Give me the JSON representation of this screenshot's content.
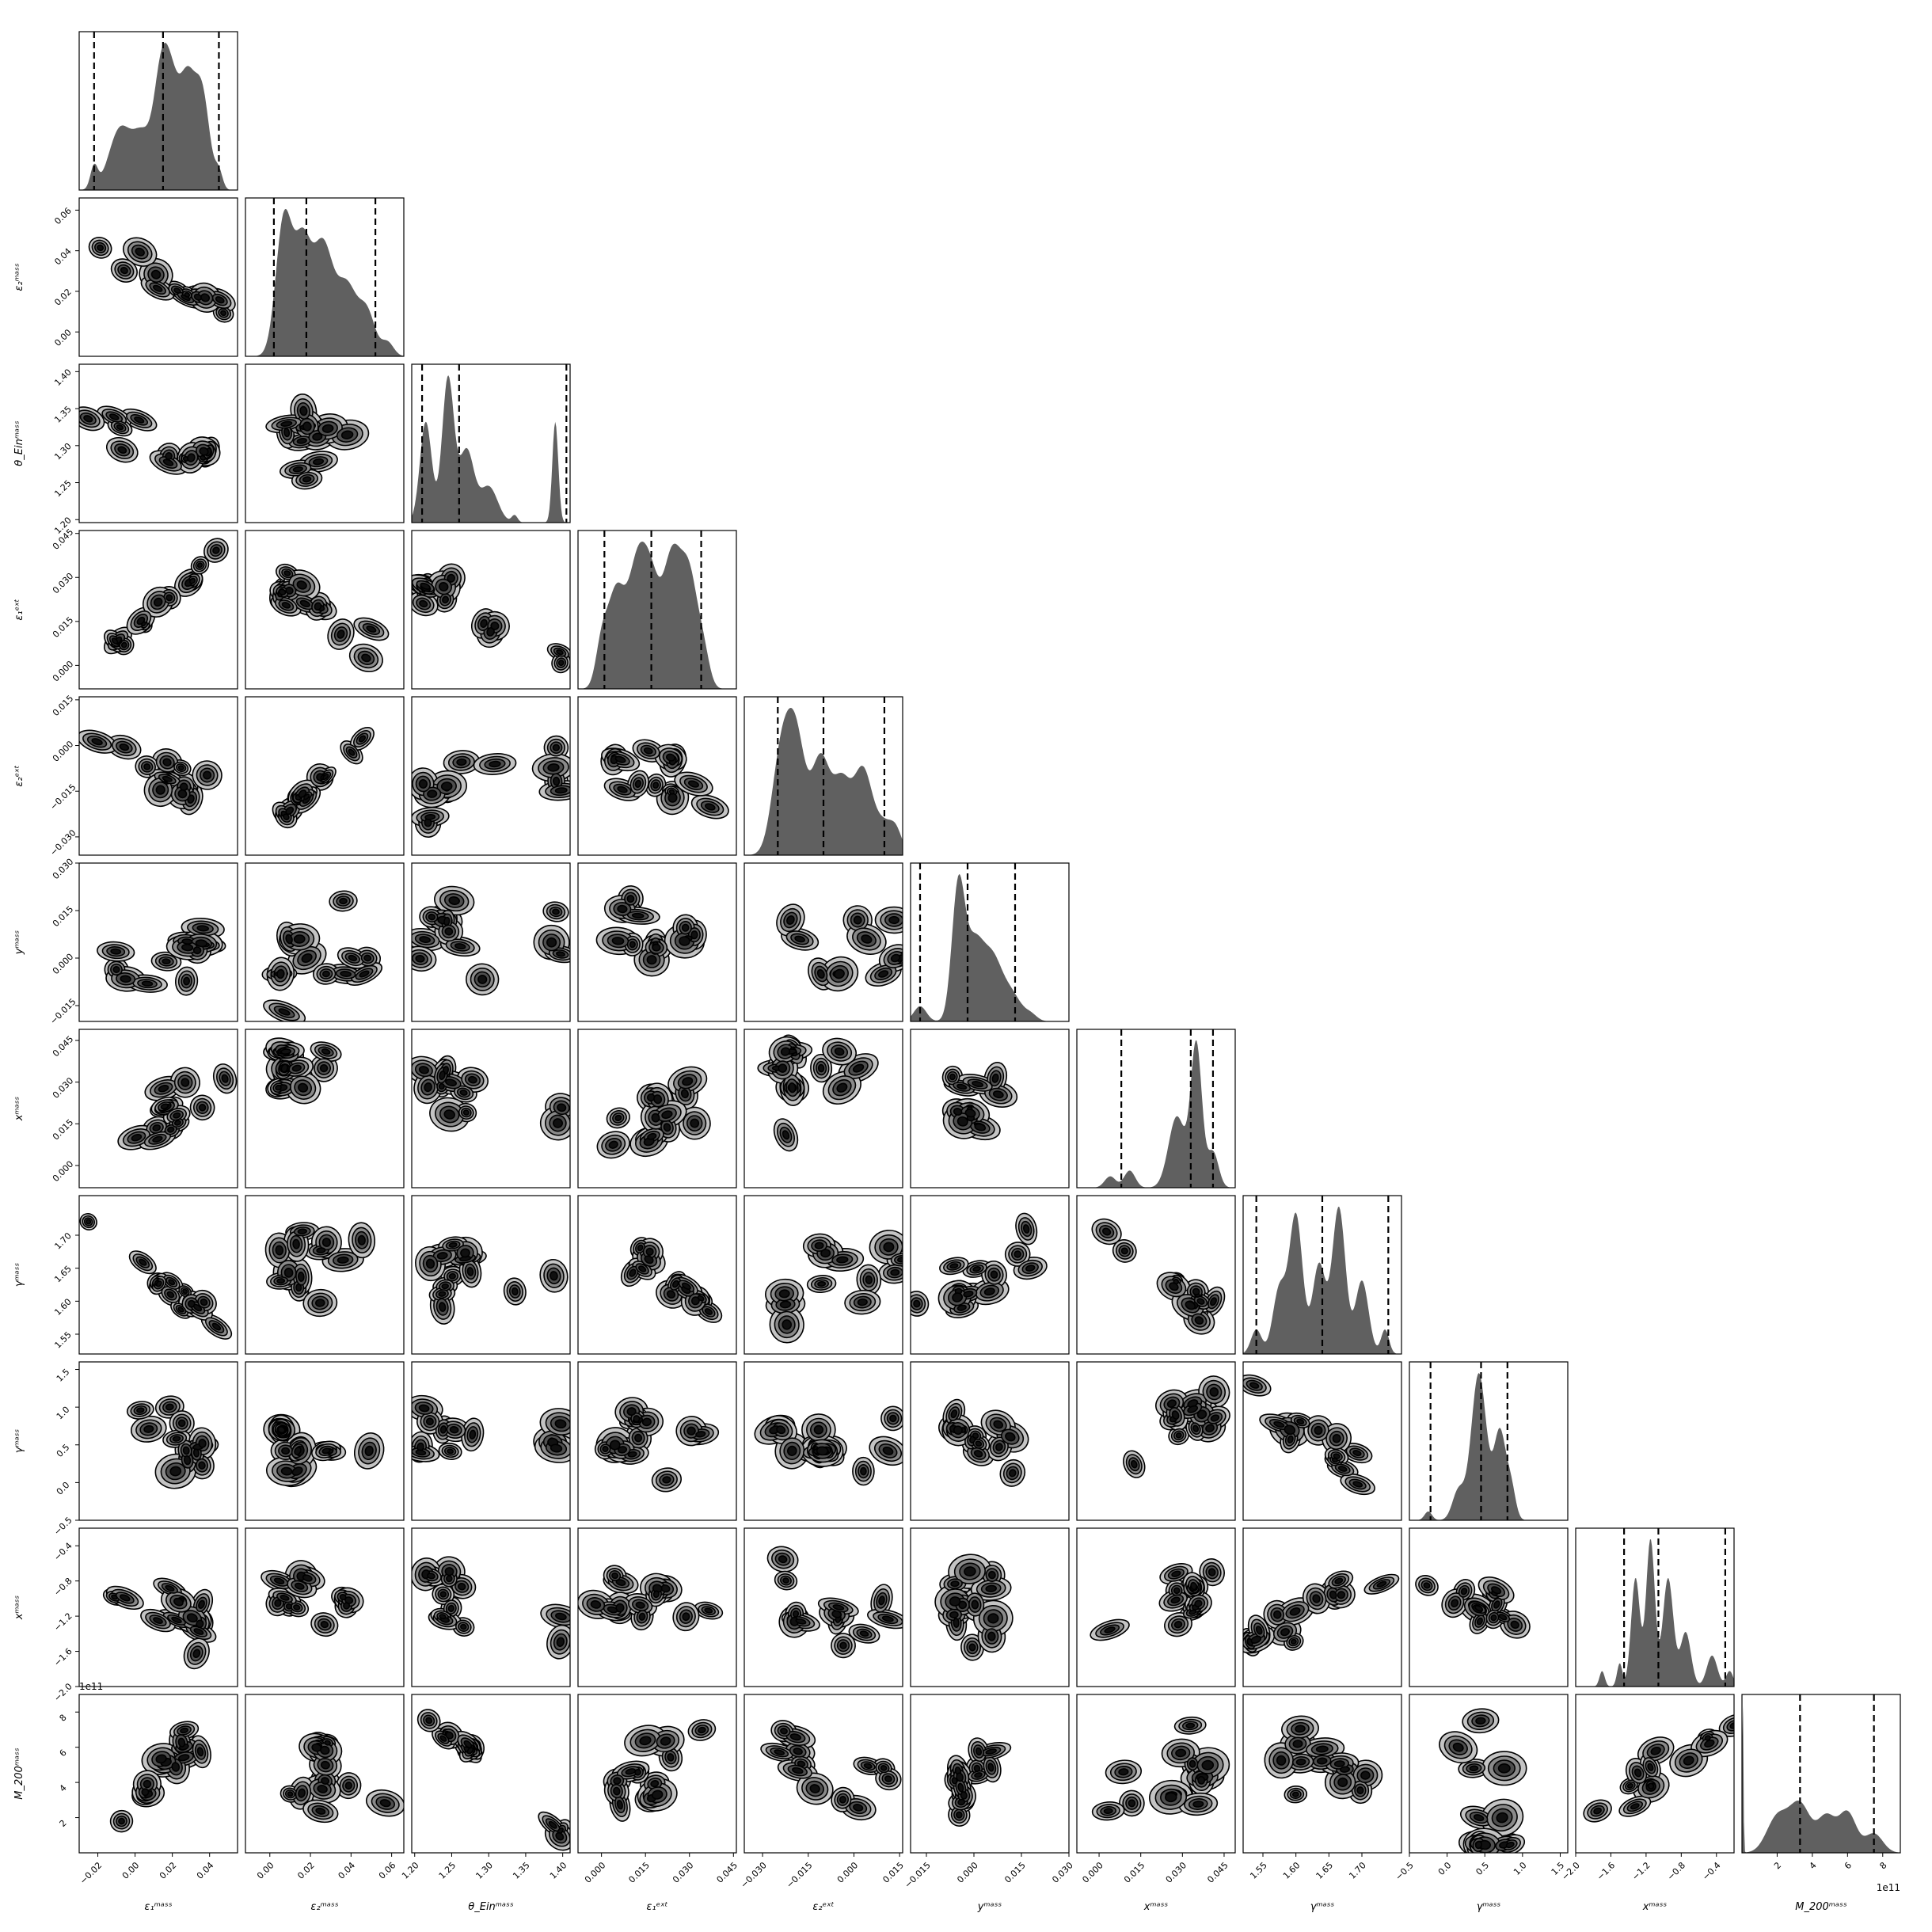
{
  "chart_data": {
    "type": "corner",
    "grid": false,
    "parameters": [
      {
        "label": "ε₁ᵐᵃˢˢ",
        "range": [
          -0.03,
          0.055
        ],
        "ticks": [
          -0.02,
          0.0,
          0.02,
          0.04
        ],
        "tick_labels": [
          "−0.02",
          "0.00",
          "0.02",
          "0.04"
        ],
        "quantiles": [
          -0.022,
          0.015,
          0.045
        ],
        "peaks": [
          [
            -0.022,
            0.2,
            0.002
          ],
          [
            -0.008,
            0.55,
            0.006
          ],
          [
            0.004,
            0.45,
            0.005
          ],
          [
            0.014,
            0.95,
            0.004
          ],
          [
            0.02,
            0.75,
            0.004
          ],
          [
            0.028,
            0.9,
            0.004
          ],
          [
            0.036,
            0.85,
            0.004
          ],
          [
            0.045,
            0.15,
            0.002
          ]
        ]
      },
      {
        "label": "ε₂ᵐᵃˢˢ",
        "range": [
          -0.012,
          0.066
        ],
        "ticks": [
          0.0,
          0.02,
          0.04,
          0.06
        ],
        "tick_labels": [
          "0.00",
          "0.02",
          "0.04",
          "0.06"
        ],
        "quantiles": [
          0.002,
          0.018,
          0.052
        ],
        "peaks": [
          [
            0.007,
            1.0,
            0.004
          ],
          [
            0.016,
            0.75,
            0.004
          ],
          [
            0.026,
            0.8,
            0.005
          ],
          [
            0.038,
            0.5,
            0.005
          ],
          [
            0.048,
            0.3,
            0.004
          ],
          [
            0.058,
            0.1,
            0.003
          ]
        ]
      },
      {
        "label": "θ_Einᵐᵃˢˢ",
        "range": [
          1.196,
          1.41
        ],
        "ticks": [
          1.2,
          1.25,
          1.3,
          1.35,
          1.4
        ],
        "tick_labels": [
          "1.20",
          "1.25",
          "1.30",
          "1.35",
          "1.40"
        ],
        "quantiles": [
          1.21,
          1.26,
          1.405
        ],
        "peaks": [
          [
            1.215,
            0.7,
            0.008
          ],
          [
            1.245,
            1.0,
            0.008
          ],
          [
            1.27,
            0.5,
            0.01
          ],
          [
            1.3,
            0.25,
            0.012
          ],
          [
            1.335,
            0.05,
            0.004
          ],
          [
            1.39,
            0.7,
            0.004
          ]
        ]
      },
      {
        "label": "ε₁ᵉˣᵗ",
        "range": [
          -0.008,
          0.046
        ],
        "ticks": [
          0.0,
          0.015,
          0.03,
          0.045
        ],
        "tick_labels": [
          "0.000",
          "0.015",
          "0.030",
          "0.045"
        ],
        "quantiles": [
          0.001,
          0.017,
          0.034
        ],
        "peaks": [
          [
            0.0,
            0.3,
            0.002
          ],
          [
            0.005,
            0.75,
            0.003
          ],
          [
            0.012,
            0.85,
            0.003
          ],
          [
            0.017,
            0.75,
            0.003
          ],
          [
            0.024,
            0.95,
            0.003
          ],
          [
            0.03,
            0.85,
            0.003
          ],
          [
            0.035,
            0.2,
            0.002
          ]
        ]
      },
      {
        "label": "ε₂ᵉˣᵗ",
        "range": [
          -0.036,
          0.016
        ],
        "ticks": [
          -0.03,
          -0.015,
          0.0,
          0.015
        ],
        "tick_labels": [
          "−0.030",
          "−0.015",
          "0.000",
          "0.015"
        ],
        "quantiles": [
          -0.025,
          -0.01,
          0.01
        ],
        "peaks": [
          [
            -0.024,
            0.8,
            0.003
          ],
          [
            -0.019,
            0.95,
            0.003
          ],
          [
            -0.011,
            0.8,
            0.003
          ],
          [
            -0.004,
            0.6,
            0.003
          ],
          [
            0.003,
            0.7,
            0.003
          ],
          [
            0.01,
            0.25,
            0.003
          ],
          [
            0.014,
            0.15,
            0.002
          ]
        ]
      },
      {
        "label": "yᵐᵃˢˢ",
        "range": [
          -0.02,
          0.03
        ],
        "ticks": [
          -0.015,
          0.0,
          0.015,
          0.03
        ],
        "tick_labels": [
          "−0.015",
          "0.000",
          "0.015",
          "0.030"
        ],
        "quantiles": [
          -0.017,
          -0.002,
          0.013
        ],
        "peaks": [
          [
            -0.017,
            0.12,
            0.002
          ],
          [
            -0.005,
            1.0,
            0.002
          ],
          [
            0.0,
            0.6,
            0.003
          ],
          [
            0.006,
            0.45,
            0.003
          ],
          [
            0.012,
            0.2,
            0.003
          ],
          [
            0.018,
            0.05,
            0.002
          ]
        ]
      },
      {
        "label": "xᵐᵃˢˢ",
        "range": [
          -0.008,
          0.049
        ],
        "ticks": [
          0.0,
          0.015,
          0.03,
          0.045
        ],
        "tick_labels": [
          "0.000",
          "0.015",
          "0.030",
          "0.045"
        ],
        "quantiles": [
          0.008,
          0.033,
          0.041
        ],
        "peaks": [
          [
            0.004,
            0.08,
            0.002
          ],
          [
            0.011,
            0.12,
            0.002
          ],
          [
            0.028,
            0.5,
            0.003
          ],
          [
            0.035,
            1.0,
            0.002
          ],
          [
            0.041,
            0.25,
            0.002
          ]
        ]
      },
      {
        "label": "γᵐᵃˢˢ",
        "range": [
          1.52,
          1.76
        ],
        "ticks": [
          1.55,
          1.6,
          1.65,
          1.7
        ],
        "tick_labels": [
          "1.55",
          "1.60",
          "1.65",
          "1.70"
        ],
        "quantiles": [
          1.54,
          1.64,
          1.74
        ],
        "peaks": [
          [
            1.54,
            0.15,
            0.008
          ],
          [
            1.575,
            0.4,
            0.01
          ],
          [
            1.6,
            0.85,
            0.01
          ],
          [
            1.635,
            0.55,
            0.01
          ],
          [
            1.665,
            0.9,
            0.01
          ],
          [
            1.7,
            0.45,
            0.01
          ],
          [
            1.735,
            0.15,
            0.006
          ]
        ]
      },
      {
        "label": "γᵐᵃˢˢ",
        "range": [
          -0.5,
          1.6
        ],
        "ticks": [
          -0.5,
          0.0,
          0.5,
          1.0,
          1.5
        ],
        "tick_labels": [
          "−0.5",
          "0.0",
          "0.5",
          "1.0",
          "1.5"
        ],
        "quantiles": [
          -0.22,
          0.45,
          0.8
        ],
        "peaks": [
          [
            -0.25,
            0.06,
            0.05
          ],
          [
            0.15,
            0.2,
            0.08
          ],
          [
            0.42,
            1.0,
            0.1
          ],
          [
            0.7,
            0.6,
            0.08
          ],
          [
            0.85,
            0.2,
            0.06
          ]
        ]
      },
      {
        "label": "xᵐᵃˢˢ",
        "range": [
          -2.0,
          -0.2
        ],
        "ticks": [
          -2.0,
          -1.6,
          -1.2,
          -0.8,
          -0.4
        ],
        "tick_labels": [
          "−2.0",
          "−1.6",
          "−1.2",
          "−0.8",
          "−0.4"
        ],
        "quantiles": [
          -1.45,
          -1.06,
          -0.3
        ],
        "peaks": [
          [
            -1.7,
            0.1,
            0.03
          ],
          [
            -1.5,
            0.15,
            0.03
          ],
          [
            -1.32,
            0.7,
            0.05
          ],
          [
            -1.15,
            0.95,
            0.05
          ],
          [
            -0.95,
            0.7,
            0.06
          ],
          [
            -0.75,
            0.35,
            0.06
          ],
          [
            -0.45,
            0.2,
            0.06
          ],
          [
            -0.25,
            0.1,
            0.04
          ]
        ]
      },
      {
        "label": "M_200ᵐᵃˢˢ",
        "range": [
          0,
          900000000000.0
        ],
        "ticks": [
          200000000000.0,
          400000000000.0,
          600000000000.0,
          800000000000.0
        ],
        "tick_labels": [
          "2",
          "4",
          "6",
          "8"
        ],
        "offset_label": "1e11",
        "quantiles": [
          330000000000.0,
          750000000000.0
        ],
        "peaks": [
          [
            4000000000.0,
            1.0,
            4000000000.0
          ],
          [
            200000000000.0,
            0.22,
            60000000000.0
          ],
          [
            330000000000.0,
            0.3,
            60000000000.0
          ],
          [
            480000000000.0,
            0.22,
            50000000000.0
          ],
          [
            600000000000.0,
            0.25,
            50000000000.0
          ],
          [
            750000000000.0,
            0.12,
            50000000000.0
          ]
        ]
      }
    ],
    "correlations": {
      "1_0": -0.6,
      "2_0": -0.5,
      "3_0": 0.95,
      "4_0": -0.4,
      "5_0": -0.1,
      "6_0": 0.4,
      "7_0": -0.8,
      "8_0": 0.2,
      "9_0": -0.5,
      "10_0": 0.3,
      "2_1": 0.2,
      "3_1": -0.5,
      "4_1": 0.95,
      "5_1": 0.0,
      "6_1": 0.0,
      "7_1": 0.1,
      "8_1": 0.0,
      "9_1": -0.4,
      "10_1": -0.3,
      "3_2": -0.5,
      "4_2": 0.1,
      "5_2": -0.2,
      "6_2": -0.3,
      "7_2": 0.2,
      "8_2": -0.2,
      "9_2": -0.3,
      "10_2": -0.9,
      "4_3": -0.4,
      "5_3": -0.1,
      "6_3": 0.4,
      "7_3": -0.7,
      "8_3": 0.2,
      "9_3": -0.3,
      "10_3": 0.3,
      "5_4": 0.0,
      "6_4": 0.0,
      "7_4": 0.1,
      "8_4": 0.0,
      "9_4": -0.3,
      "10_4": -0.3,
      "6_5": -0.3,
      "7_5": 0.3,
      "8_5": -0.5,
      "9_5": 0.1,
      "10_5": 0.3,
      "7_6": -0.6,
      "8_6": 0.5,
      "9_6": 0.4,
      "10_6": 0.1,
      "8_7": -0.4,
      "9_7": 0.5,
      "10_7": 0.1,
      "9_8": -0.6,
      "10_8": 0.0,
      "10_9": 0.5
    }
  }
}
